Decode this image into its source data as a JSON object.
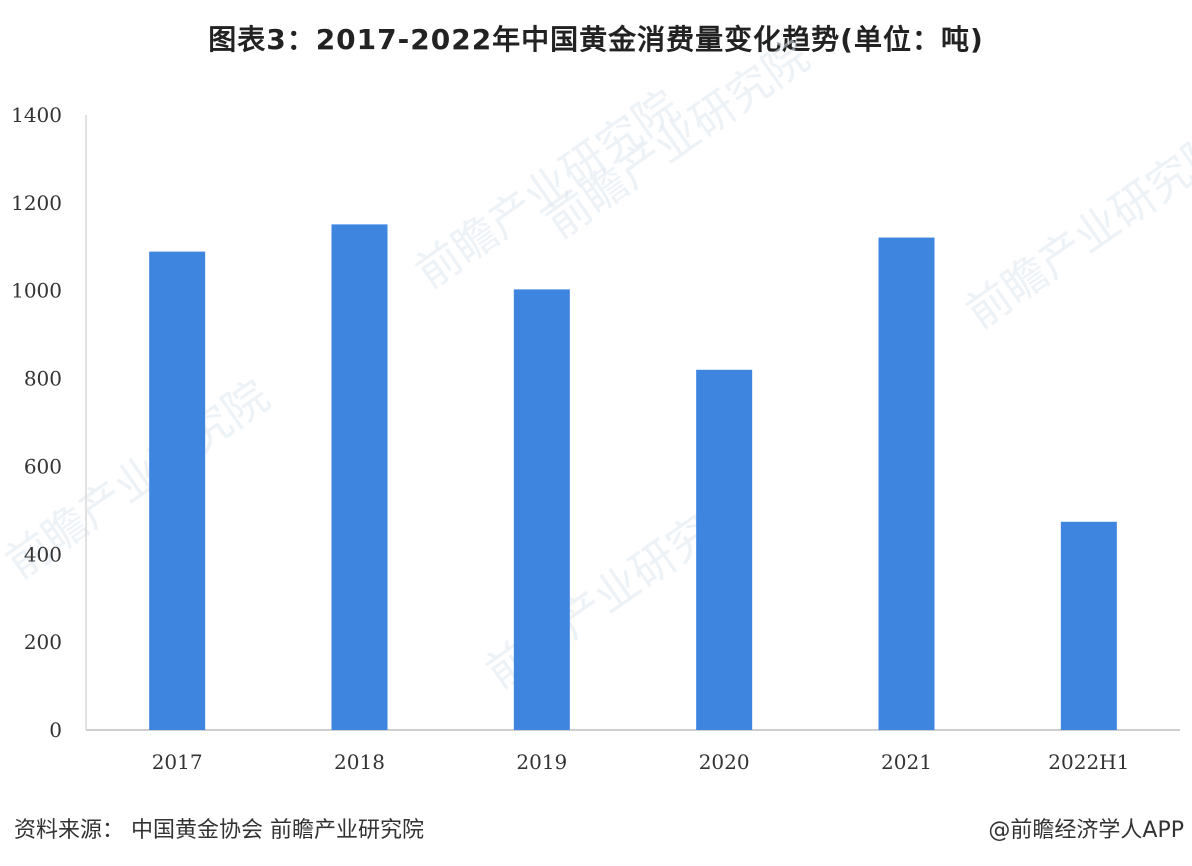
{
  "chart_data": {
    "type": "bar",
    "title": "图表3：2017-2022年中国黄金消费量变化趋势(单位：吨)",
    "categories": [
      "2017",
      "2018",
      "2019",
      "2020",
      "2021",
      "2022H1"
    ],
    "series": [
      {
        "values": [
          1089,
          1151,
          1003,
          820,
          1121,
          474
        ]
      }
    ],
    "ylim": [
      0,
      1400
    ],
    "yticks": [
      0,
      200,
      400,
      600,
      800,
      1000,
      1200,
      1400
    ],
    "bar_color": "#3e85e0",
    "grid": false,
    "legend": "none"
  },
  "watermark": "前瞻产业研究院",
  "footer": {
    "source": "资料来源： 中国黄金协会 前瞻产业研究院",
    "credit": "@前瞻经济学人APP"
  }
}
